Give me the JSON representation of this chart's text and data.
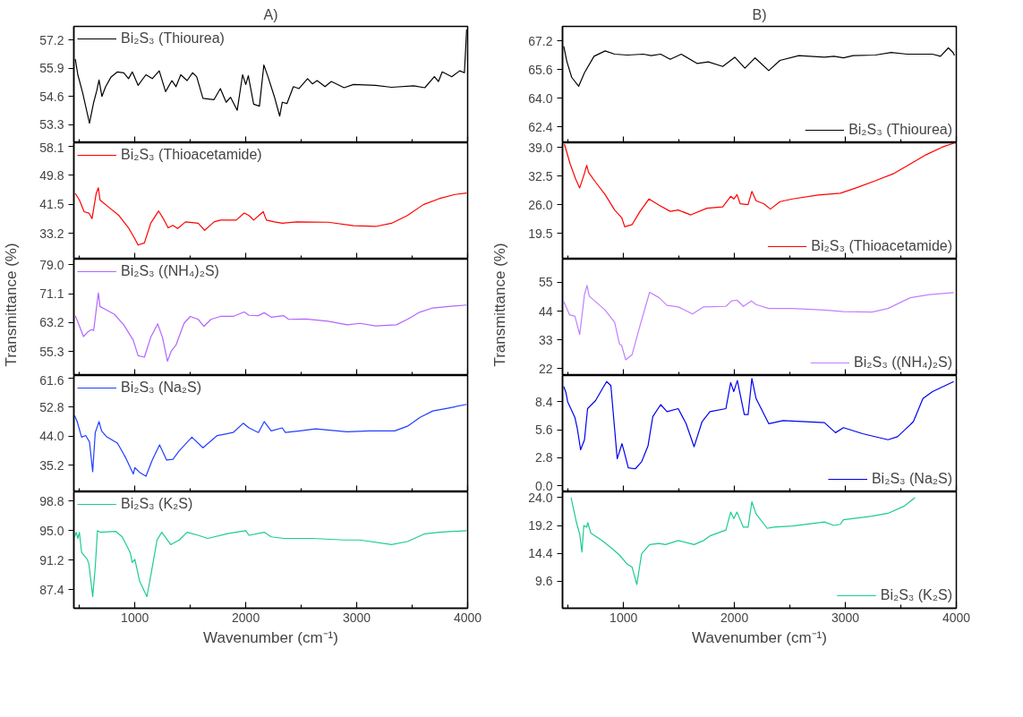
{
  "chart_data": [
    {
      "type": "line",
      "title": "A)",
      "x": [
        463,
        486,
        529,
        591,
        629,
        657,
        677,
        703,
        737,
        786,
        843,
        900,
        943,
        977,
        1029,
        1100,
        1157,
        1220,
        1277,
        1334,
        1371,
        1414,
        1471,
        1520,
        1557,
        1614,
        1714,
        1771,
        1823,
        1863,
        1923,
        1971,
        2000,
        2023,
        2071,
        2123,
        2163,
        2200,
        2257,
        2306,
        2329,
        2371,
        2429,
        2480,
        2557,
        2600,
        2643,
        2714,
        2771,
        2886,
        2971,
        3171,
        3314,
        3514,
        3614,
        3700,
        3737,
        3771,
        3857,
        3929,
        3971,
        3991
      ],
      "series": [
        {
          "name": "Bi₂S₃ (Thiourea)",
          "color": "#000000",
          "values": [
            56.33,
            55.6,
            54.78,
            53.36,
            54.33,
            54.87,
            55.36,
            54.6,
            55.05,
            55.5,
            55.73,
            55.69,
            55.42,
            55.73,
            55.11,
            55.6,
            55.42,
            55.78,
            54.82,
            55.33,
            55.05,
            55.6,
            55.33,
            55.69,
            55.51,
            54.51,
            54.45,
            54.96,
            54.33,
            54.56,
            53.96,
            55.6,
            55.15,
            55.55,
            54.24,
            54.15,
            56.05,
            55.51,
            54.6,
            53.69,
            54.33,
            54.27,
            55.05,
            54.96,
            55.42,
            55.18,
            55.33,
            55.05,
            55.29,
            55.0,
            55.15,
            55.11,
            55.02,
            55.09,
            55.0,
            55.51,
            55.29,
            55.73,
            55.51,
            55.78,
            55.69,
            57.69
          ]
        }
      ],
      "xlim": [
        450,
        4000
      ],
      "xticks": [
        {
          "value": 500,
          "label": null
        },
        1000,
        {
          "value": 1500,
          "label": null
        },
        2000,
        {
          "value": 2500,
          "label": null
        },
        3000,
        {
          "value": 3500,
          "label": null
        },
        4000
      ],
      "ylim": [
        52.46,
        57.83
      ],
      "yticks": [
        53.3,
        54.6,
        55.9,
        57.2
      ],
      "legend": "top left",
      "tick_labels": "y"
    },
    {
      "type": "line",
      "x": [
        463,
        500,
        543,
        586,
        614,
        651,
        671,
        686,
        771,
        857,
        943,
        1000,
        1029,
        1086,
        1143,
        1214,
        1257,
        1300,
        1343,
        1386,
        1457,
        1571,
        1629,
        1714,
        1771,
        1914,
        1986,
        2029,
        2071,
        2157,
        2186,
        2257,
        2329,
        2457,
        2743,
        2971,
        3171,
        3314,
        3457,
        3600,
        3743,
        3886,
        3991
      ],
      "series": [
        {
          "name": "Bi₂S₃ (Thioacetamide)",
          "color": "#ff0000",
          "values": [
            44.6,
            42.7,
            39.4,
            39.0,
            37.4,
            44.5,
            46.2,
            42.7,
            40.5,
            38.3,
            34.8,
            31.7,
            29.9,
            30.5,
            36.1,
            39.6,
            37.4,
            34.8,
            35.5,
            34.6,
            36.5,
            36.1,
            34.1,
            36.5,
            37.0,
            37.0,
            39.0,
            38.3,
            37.0,
            39.4,
            37.0,
            36.5,
            36.1,
            36.5,
            36.4,
            35.4,
            35.2,
            36.1,
            38.3,
            41.4,
            43.1,
            44.3,
            44.7
          ]
        }
      ],
      "xlim": [
        450,
        4000
      ],
      "xticks": [
        {
          "value": 500,
          "label": null
        },
        1000,
        {
          "value": 1500,
          "label": null
        },
        2000,
        {
          "value": 2500,
          "label": null
        },
        3000,
        {
          "value": 3500,
          "label": null
        },
        4000
      ],
      "ylim": [
        25.9,
        59.0
      ],
      "yticks": [
        33.2,
        41.5,
        49.8,
        58.1
      ],
      "legend": "top left",
      "tick_labels": "y"
    },
    {
      "type": "line",
      "ylabel": "Transmittance (%)",
      "x": [
        463,
        491,
        537,
        577,
        609,
        629,
        657,
        671,
        686,
        729,
        814,
        900,
        986,
        1029,
        1086,
        1143,
        1206,
        1249,
        1294,
        1329,
        1371,
        1443,
        1500,
        1571,
        1623,
        1686,
        1771,
        1886,
        1986,
        2029,
        2114,
        2166,
        2229,
        2343,
        2386,
        2543,
        2743,
        2914,
        3029,
        3171,
        3357,
        3457,
        3571,
        3686,
        3829,
        3991
      ],
      "series": [
        {
          "name": "Bi₂S₃ ((NH₄)₂S)",
          "color": "#b266ff",
          "values": [
            65.1,
            63.0,
            59.4,
            60.7,
            61.3,
            61.1,
            68.0,
            71.3,
            67.6,
            66.9,
            65.5,
            62.6,
            58.4,
            54.2,
            53.8,
            59.2,
            62.9,
            59.2,
            52.7,
            55.5,
            57.1,
            63.0,
            64.9,
            64.1,
            62.2,
            64.1,
            64.9,
            64.9,
            66.1,
            65.2,
            65.1,
            65.9,
            64.7,
            65.1,
            64.1,
            64.2,
            63.6,
            62.6,
            63.0,
            62.3,
            62.6,
            64.1,
            66.1,
            67.2,
            67.6,
            68.0
          ]
        }
      ],
      "xlim": [
        450,
        4000
      ],
      "xticks": [
        {
          "value": 500,
          "label": null
        },
        1000,
        {
          "value": 1500,
          "label": null
        },
        2000,
        {
          "value": 2500,
          "label": null
        },
        3000,
        {
          "value": 3500,
          "label": null
        },
        4000
      ],
      "ylim": [
        48.8,
        80.5
      ],
      "yticks": [
        55.3,
        63.2,
        71.1,
        {
          "value": 79,
          "label": "79.0"
        }
      ],
      "legend": "top left",
      "tick_labels": "y"
    },
    {
      "type": "line",
      "x": [
        457,
        480,
        520,
        557,
        591,
        620,
        643,
        663,
        677,
        700,
        743,
        843,
        914,
        986,
        1000,
        1043,
        1100,
        1157,
        1223,
        1286,
        1343,
        1400,
        1514,
        1614,
        1743,
        1886,
        1977,
        2029,
        2114,
        2166,
        2229,
        2329,
        2357,
        2486,
        2629,
        2914,
        3114,
        3343,
        3457,
        3571,
        3686,
        3829,
        3991
      ],
      "series": [
        {
          "name": "Bi₂S₃ (Na₂S)",
          "color": "#1f3fff",
          "values": [
            50.2,
            48.4,
            43.7,
            44.2,
            42.3,
            33.3,
            45.1,
            47.0,
            48.4,
            45.6,
            43.9,
            41.9,
            37.7,
            32.6,
            34.5,
            33.1,
            31.9,
            36.8,
            41.4,
            36.8,
            37.0,
            39.6,
            43.7,
            40.5,
            44.2,
            45.1,
            47.9,
            46.5,
            45.1,
            48.4,
            45.6,
            46.5,
            45.1,
            45.6,
            46.2,
            45.3,
            45.6,
            45.6,
            47.0,
            49.7,
            51.6,
            52.5,
            53.6
          ]
        }
      ],
      "xlim": [
        450,
        4000
      ],
      "xticks": [
        {
          "value": 500,
          "label": null
        },
        1000,
        {
          "value": 1500,
          "label": null
        },
        2000,
        {
          "value": 2500,
          "label": null
        },
        3000,
        {
          "value": 3500,
          "label": null
        },
        4000
      ],
      "ylim": [
        27.2,
        62.3
      ],
      "yticks": [
        35.2,
        {
          "value": 44,
          "label": "44.0"
        },
        52.8,
        61.6
      ],
      "legend": "top left",
      "tick_labels": "y"
    },
    {
      "type": "line",
      "xlabel": "Wavenumber (cm⁻¹)",
      "x": [
        457,
        471,
        486,
        500,
        520,
        571,
        586,
        620,
        643,
        663,
        686,
        829,
        886,
        957,
        977,
        1000,
        1043,
        1109,
        1157,
        1200,
        1243,
        1323,
        1400,
        1471,
        1571,
        1657,
        1829,
        2000,
        2029,
        2166,
        2229,
        2343,
        2600,
        2886,
        3029,
        3314,
        3457,
        3614,
        3743,
        3991
      ],
      "series": [
        {
          "name": "Bi₂S₃ (K₂S)",
          "color": "#1ccc8f",
          "values": [
            94.2,
            94.8,
            94.0,
            94.8,
            92.2,
            91.3,
            90.7,
            86.5,
            90.3,
            95.0,
            94.8,
            94.9,
            94.2,
            92.2,
            90.9,
            91.3,
            88.5,
            86.5,
            90.3,
            93.8,
            94.8,
            93.2,
            93.8,
            94.8,
            94.4,
            94.0,
            94.6,
            95.0,
            94.4,
            94.8,
            94.2,
            94.0,
            94.0,
            93.8,
            93.8,
            93.2,
            93.6,
            94.6,
            94.8,
            95.0
          ]
        }
      ],
      "xlim": [
        450,
        4000
      ],
      "xticks": [
        {
          "value": 500,
          "label": null
        },
        1000,
        {
          "value": 1500,
          "label": null
        },
        2000,
        {
          "value": 2500,
          "label": null
        },
        3000,
        {
          "value": 3500,
          "label": null
        },
        4000
      ],
      "ylim": [
        85.0,
        100.0
      ],
      "yticks": [
        87.4,
        91.2,
        {
          "value": 95,
          "label": "95.0"
        },
        98.8
      ],
      "legend": "top left"
    },
    {
      "type": "line",
      "title": "B)",
      "x": [
        461,
        490,
        533,
        596,
        648,
        734,
        834,
        920,
        1034,
        1178,
        1249,
        1335,
        1421,
        1521,
        1665,
        1765,
        1894,
        2003,
        2094,
        2186,
        2309,
        2410,
        2581,
        2811,
        2897,
        2983,
        3069,
        3269,
        3413,
        3556,
        3785,
        3857,
        3928,
        3971,
        3983
      ],
      "series": [
        {
          "name": "Bi₂S₃ (Thiourea)",
          "color": "#000000",
          "values": [
            66.89,
            66.02,
            65.15,
            64.66,
            65.41,
            66.33,
            66.63,
            66.45,
            66.4,
            66.45,
            66.37,
            66.45,
            66.16,
            66.45,
            65.93,
            66.02,
            65.76,
            66.28,
            65.67,
            66.24,
            65.53,
            66.1,
            66.37,
            66.28,
            66.33,
            66.24,
            66.37,
            66.4,
            66.54,
            66.45,
            66.45,
            66.33,
            66.8,
            66.54,
            66.37
          ]
        }
      ],
      "xlim": [
        450,
        4000
      ],
      "xticks": [
        {
          "value": 500,
          "label": null
        },
        1000,
        {
          "value": 1500,
          "label": null
        },
        2000,
        {
          "value": 2500,
          "label": null
        },
        3000,
        {
          "value": 3500,
          "label": null
        },
        4000
      ],
      "ylim": [
        61.5,
        68.0
      ],
      "yticks": [
        62.4,
        {
          "value": 64,
          "label": "64.0"
        },
        65.6,
        67.2
      ],
      "legend": "bottom right",
      "tick_labels": "y"
    },
    {
      "type": "line",
      "x": [
        467,
        519,
        570,
        605,
        648,
        668,
        685,
        748,
        834,
        920,
        983,
        1011,
        1077,
        1149,
        1229,
        1321,
        1421,
        1493,
        1607,
        1751,
        1894,
        1966,
        1994,
        2023,
        2052,
        2123,
        2157,
        2195,
        2266,
        2324,
        2410,
        2524,
        2753,
        2954,
        3097,
        3269,
        3441,
        3584,
        3728,
        3871,
        3977
      ],
      "series": [
        {
          "name": "Bi₂S₃ (Thioacetamide)",
          "color": "#ff0000",
          "values": [
            39.7,
            35.2,
            31.7,
            29.8,
            33.1,
            34.9,
            33.3,
            31.1,
            28.3,
            24.8,
            23.1,
            21.0,
            21.5,
            24.5,
            27.3,
            25.9,
            24.5,
            24.8,
            23.7,
            25.2,
            25.5,
            27.9,
            27.3,
            28.3,
            26.2,
            26.0,
            29.0,
            26.9,
            26.2,
            25.0,
            26.7,
            27.3,
            28.2,
            28.6,
            29.8,
            31.4,
            33.1,
            35.2,
            37.3,
            39.0,
            39.9
          ]
        }
      ],
      "xlim": [
        450,
        4000
      ],
      "xticks": [
        {
          "value": 500,
          "label": null
        },
        1000,
        {
          "value": 1500,
          "label": null
        },
        2000,
        {
          "value": 2500,
          "label": null
        },
        3000,
        {
          "value": 3500,
          "label": null
        },
        4000
      ],
      "ylim": [
        13.7,
        40.0
      ],
      "yticks": [
        19.5,
        {
          "value": 26,
          "label": "26.0"
        },
        32.5,
        {
          "value": 39,
          "label": "39.0"
        }
      ],
      "legend": "bottom right",
      "tick_labels": "y"
    },
    {
      "type": "line",
      "ylabel": "Transmittance (%)",
      "x": [
        461,
        513,
        562,
        605,
        648,
        671,
        691,
        834,
        920,
        963,
        983,
        1020,
        1077,
        1149,
        1235,
        1321,
        1392,
        1493,
        1622,
        1722,
        1923,
        1974,
        2023,
        2080,
        2152,
        2195,
        2309,
        2524,
        2811,
        2983,
        3240,
        3384,
        3584,
        3756,
        3977
      ],
      "series": [
        {
          "name": "Bi₂S₃ ((NH₄)₂S)",
          "color": "#c080ff",
          "values": [
            47.7,
            42.6,
            42.0,
            35.0,
            50.3,
            53.8,
            49.7,
            44.4,
            39.7,
            31.4,
            30.8,
            25.3,
            27.3,
            38.5,
            51.2,
            49.1,
            46.2,
            45.6,
            42.9,
            45.6,
            45.8,
            47.9,
            48.2,
            45.8,
            47.9,
            46.5,
            45.0,
            45.0,
            44.4,
            43.8,
            43.6,
            45.0,
            49.1,
            50.3,
            51.1
          ]
        }
      ],
      "xlim": [
        450,
        4000
      ],
      "xticks": [
        {
          "value": 500,
          "label": null
        },
        1000,
        {
          "value": 1500,
          "label": null
        },
        2000,
        {
          "value": 2500,
          "label": null
        },
        3000,
        {
          "value": 3500,
          "label": null
        },
        4000
      ],
      "ylim": [
        19.3,
        63.9
      ],
      "yticks": [
        22,
        33,
        44,
        55
      ],
      "legend": "bottom right",
      "tick_labels": "y"
    },
    {
      "type": "line",
      "x": [
        461,
        481,
        496,
        562,
        582,
        613,
        648,
        676,
        748,
        805,
        848,
        886,
        914,
        943,
        986,
        1006,
        1043,
        1106,
        1163,
        1221,
        1264,
        1335,
        1392,
        1493,
        1564,
        1636,
        1708,
        1779,
        1923,
        1966,
        1994,
        2026,
        2089,
        2123,
        2157,
        2195,
        2309,
        2438,
        2811,
        2911,
        2983,
        3155,
        3384,
        3470,
        3613,
        3699,
        3785,
        3977
      ],
      "series": [
        {
          "name": "Bi₂S₃ (Na₂S)",
          "color": "#0000ee",
          "values": [
            9.9,
            9.3,
            8.4,
            6.8,
            5.8,
            3.6,
            4.6,
            7.7,
            8.5,
            9.6,
            10.4,
            10.0,
            6.4,
            2.7,
            4.2,
            3.4,
            1.8,
            1.7,
            2.4,
            4.0,
            6.9,
            8.1,
            7.4,
            7.7,
            6.2,
            3.9,
            6.4,
            7.4,
            7.7,
            10.3,
            9.4,
            10.5,
            7.1,
            7.1,
            10.7,
            8.7,
            6.2,
            6.5,
            6.3,
            5.3,
            5.8,
            5.2,
            4.6,
            4.9,
            6.4,
            8.7,
            9.4,
            10.4
          ]
        }
      ],
      "xlim": [
        450,
        4000
      ],
      "xticks": [
        {
          "value": 500,
          "label": null
        },
        1000,
        {
          "value": 1500,
          "label": null
        },
        2000,
        {
          "value": 2500,
          "label": null
        },
        3000,
        {
          "value": 3500,
          "label": null
        },
        4000
      ],
      "ylim": [
        -0.6,
        11.0
      ],
      "yticks": [
        {
          "value": 0,
          "label": "0.0"
        },
        2.8,
        5.6,
        8.4
      ],
      "legend": "bottom right",
      "tick_labels": "y"
    },
    {
      "type": "line",
      "xlabel": "Wavenumber (cm⁻¹)",
      "x": [
        527,
        576,
        605,
        625,
        642,
        668,
        677,
        705,
        805,
        891,
        963,
        1034,
        1077,
        1120,
        1163,
        1235,
        1321,
        1378,
        1493,
        1636,
        1722,
        1779,
        1923,
        1966,
        1994,
        2023,
        2080,
        2123,
        2157,
        2195,
        2295,
        2352,
        2524,
        2811,
        2897,
        2954,
        2983,
        3240,
        3384,
        3527,
        3627
      ],
      "series": [
        {
          "name": "Bi₂S₃ (K₂S)",
          "color": "#1ccc8f",
          "values": [
            24.0,
            19.7,
            17.7,
            14.6,
            19.2,
            18.9,
            19.7,
            17.9,
            16.6,
            15.3,
            14.1,
            12.5,
            12.0,
            9.0,
            14.3,
            15.9,
            16.1,
            15.9,
            16.6,
            15.9,
            16.6,
            17.4,
            18.4,
            21.5,
            20.4,
            21.5,
            18.9,
            18.9,
            23.3,
            21.2,
            18.7,
            18.9,
            19.1,
            19.8,
            19.2,
            19.4,
            20.2,
            20.8,
            21.3,
            22.5,
            24.0
          ]
        }
      ],
      "xlim": [
        450,
        4000
      ],
      "xticks": [
        {
          "value": 500,
          "label": null
        },
        1000,
        {
          "value": 1500,
          "label": null
        },
        2000,
        {
          "value": 2500,
          "label": null
        },
        3000,
        {
          "value": 3500,
          "label": null
        },
        4000
      ],
      "ylim": [
        4.9,
        25.0
      ],
      "yticks": [
        9.6,
        14.4,
        19.2,
        {
          "value": 24,
          "label": "24.0"
        }
      ],
      "legend": "bottom right"
    }
  ]
}
